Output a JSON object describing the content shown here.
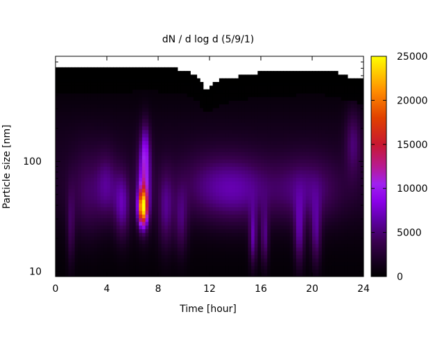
{
  "chart_data": {
    "type": "heatmap",
    "title": "dN / d log d (5/9/1)",
    "xlabel": "Time [hour]",
    "ylabel": "Particle size [nm]",
    "xlim": [
      0,
      24
    ],
    "ylim": [
      9,
      900
    ],
    "y_scale": "log",
    "x_ticks": [
      0,
      4,
      8,
      12,
      16,
      20,
      24
    ],
    "x_tick_labels": [
      "0",
      "4",
      "8",
      "12",
      "16",
      "20",
      "24"
    ],
    "y_ticks": [
      10,
      100
    ],
    "y_tick_labels": [
      "10",
      "100"
    ],
    "colorbar": {
      "range": [
        0,
        25000
      ],
      "ticks": [
        0,
        5000,
        10000,
        15000,
        20000,
        25000
      ],
      "tick_labels": [
        "0",
        "5000",
        "10000",
        "15000",
        "20000",
        "25000"
      ],
      "palette": [
        "#000000",
        "#3a0050",
        "#7a00cc",
        "#a020f0",
        "#c01060",
        "#e04000",
        "#ff8c00",
        "#ffff00"
      ]
    },
    "upper_size_limit_nm": [
      [
        0,
        720
      ],
      [
        1,
        720
      ],
      [
        2,
        700
      ],
      [
        3,
        700
      ],
      [
        4,
        690
      ],
      [
        5,
        700
      ],
      [
        6,
        720
      ],
      [
        7,
        740
      ],
      [
        8,
        720
      ],
      [
        9,
        700
      ],
      [
        10,
        680
      ],
      [
        11,
        600
      ],
      [
        11.7,
        450
      ],
      [
        12.3,
        500
      ],
      [
        13,
        560
      ],
      [
        14,
        580
      ],
      [
        15,
        620
      ],
      [
        16,
        640
      ],
      [
        17,
        660
      ],
      [
        18,
        660
      ],
      [
        19,
        670
      ],
      [
        20,
        680
      ],
      [
        21,
        670
      ],
      [
        22,
        640
      ],
      [
        23,
        580
      ],
      [
        24,
        560
      ]
    ],
    "features": [
      {
        "t": 6.8,
        "d_nm": 38,
        "dt": 0.35,
        "dlog": 0.16,
        "value": 19000
      },
      {
        "t": 6.9,
        "d_nm": 60,
        "dt": 0.5,
        "dlog": 0.35,
        "value": 8000
      },
      {
        "t": 7.0,
        "d_nm": 130,
        "dt": 0.35,
        "dlog": 0.25,
        "value": 5000
      },
      {
        "t": 5.2,
        "d_nm": 40,
        "dt": 0.6,
        "dlog": 0.3,
        "value": 5000
      },
      {
        "t": 4.0,
        "d_nm": 60,
        "dt": 0.8,
        "dlog": 0.3,
        "value": 3500
      },
      {
        "t": 1.2,
        "d_nm": 25,
        "dt": 0.3,
        "dlog": 0.35,
        "value": 3000
      },
      {
        "t": 2.5,
        "d_nm": 50,
        "dt": 1.2,
        "dlog": 0.4,
        "value": 2500
      },
      {
        "t": 8.6,
        "d_nm": 35,
        "dt": 0.6,
        "dlog": 0.35,
        "value": 4000
      },
      {
        "t": 9.8,
        "d_nm": 28,
        "dt": 0.5,
        "dlog": 0.3,
        "value": 3500
      },
      {
        "t": 15.4,
        "d_nm": 20,
        "dt": 0.3,
        "dlog": 0.25,
        "value": 5500
      },
      {
        "t": 16.3,
        "d_nm": 20,
        "dt": 0.3,
        "dlog": 0.25,
        "value": 4500
      },
      {
        "t": 19.0,
        "d_nm": 22,
        "dt": 0.4,
        "dlog": 0.3,
        "value": 5000
      },
      {
        "t": 20.3,
        "d_nm": 22,
        "dt": 0.4,
        "dlog": 0.3,
        "value": 4500
      },
      {
        "t": 14.5,
        "d_nm": 55,
        "dt": 2.5,
        "dlog": 0.3,
        "value": 3500
      },
      {
        "t": 19.5,
        "d_nm": 55,
        "dt": 2.5,
        "dlog": 0.3,
        "value": 3500
      },
      {
        "t": 23.2,
        "d_nm": 150,
        "dt": 0.6,
        "dlog": 0.3,
        "value": 3500
      },
      {
        "t": 12.0,
        "d_nm": 60,
        "dt": 2.5,
        "dlog": 0.3,
        "value": 2500
      }
    ]
  }
}
